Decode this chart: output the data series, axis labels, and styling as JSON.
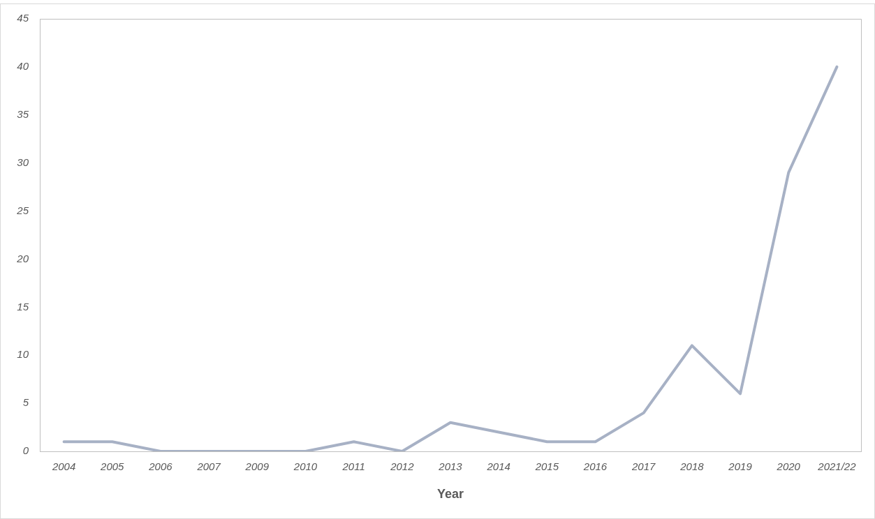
{
  "chart_data": {
    "type": "line",
    "xlabel": "Year",
    "categories": [
      "2004",
      "2005",
      "2006",
      "2007",
      "2009",
      "2010",
      "2011",
      "2012",
      "2013",
      "2014",
      "2015",
      "2016",
      "2017",
      "2018",
      "2019",
      "2020",
      "2021/22"
    ],
    "series": [
      {
        "color": "#a7b1c5",
        "values": [
          1,
          1,
          0,
          0,
          0,
          0,
          1,
          0,
          3,
          2,
          1,
          1,
          4,
          11,
          6,
          29,
          40
        ]
      }
    ],
    "ylim": [
      0,
      45
    ],
    "yticks": [
      0,
      5,
      10,
      15,
      20,
      25,
      30,
      35,
      40,
      45
    ],
    "grid": false,
    "legend": false,
    "marker": "none",
    "line_style": "solid"
  }
}
